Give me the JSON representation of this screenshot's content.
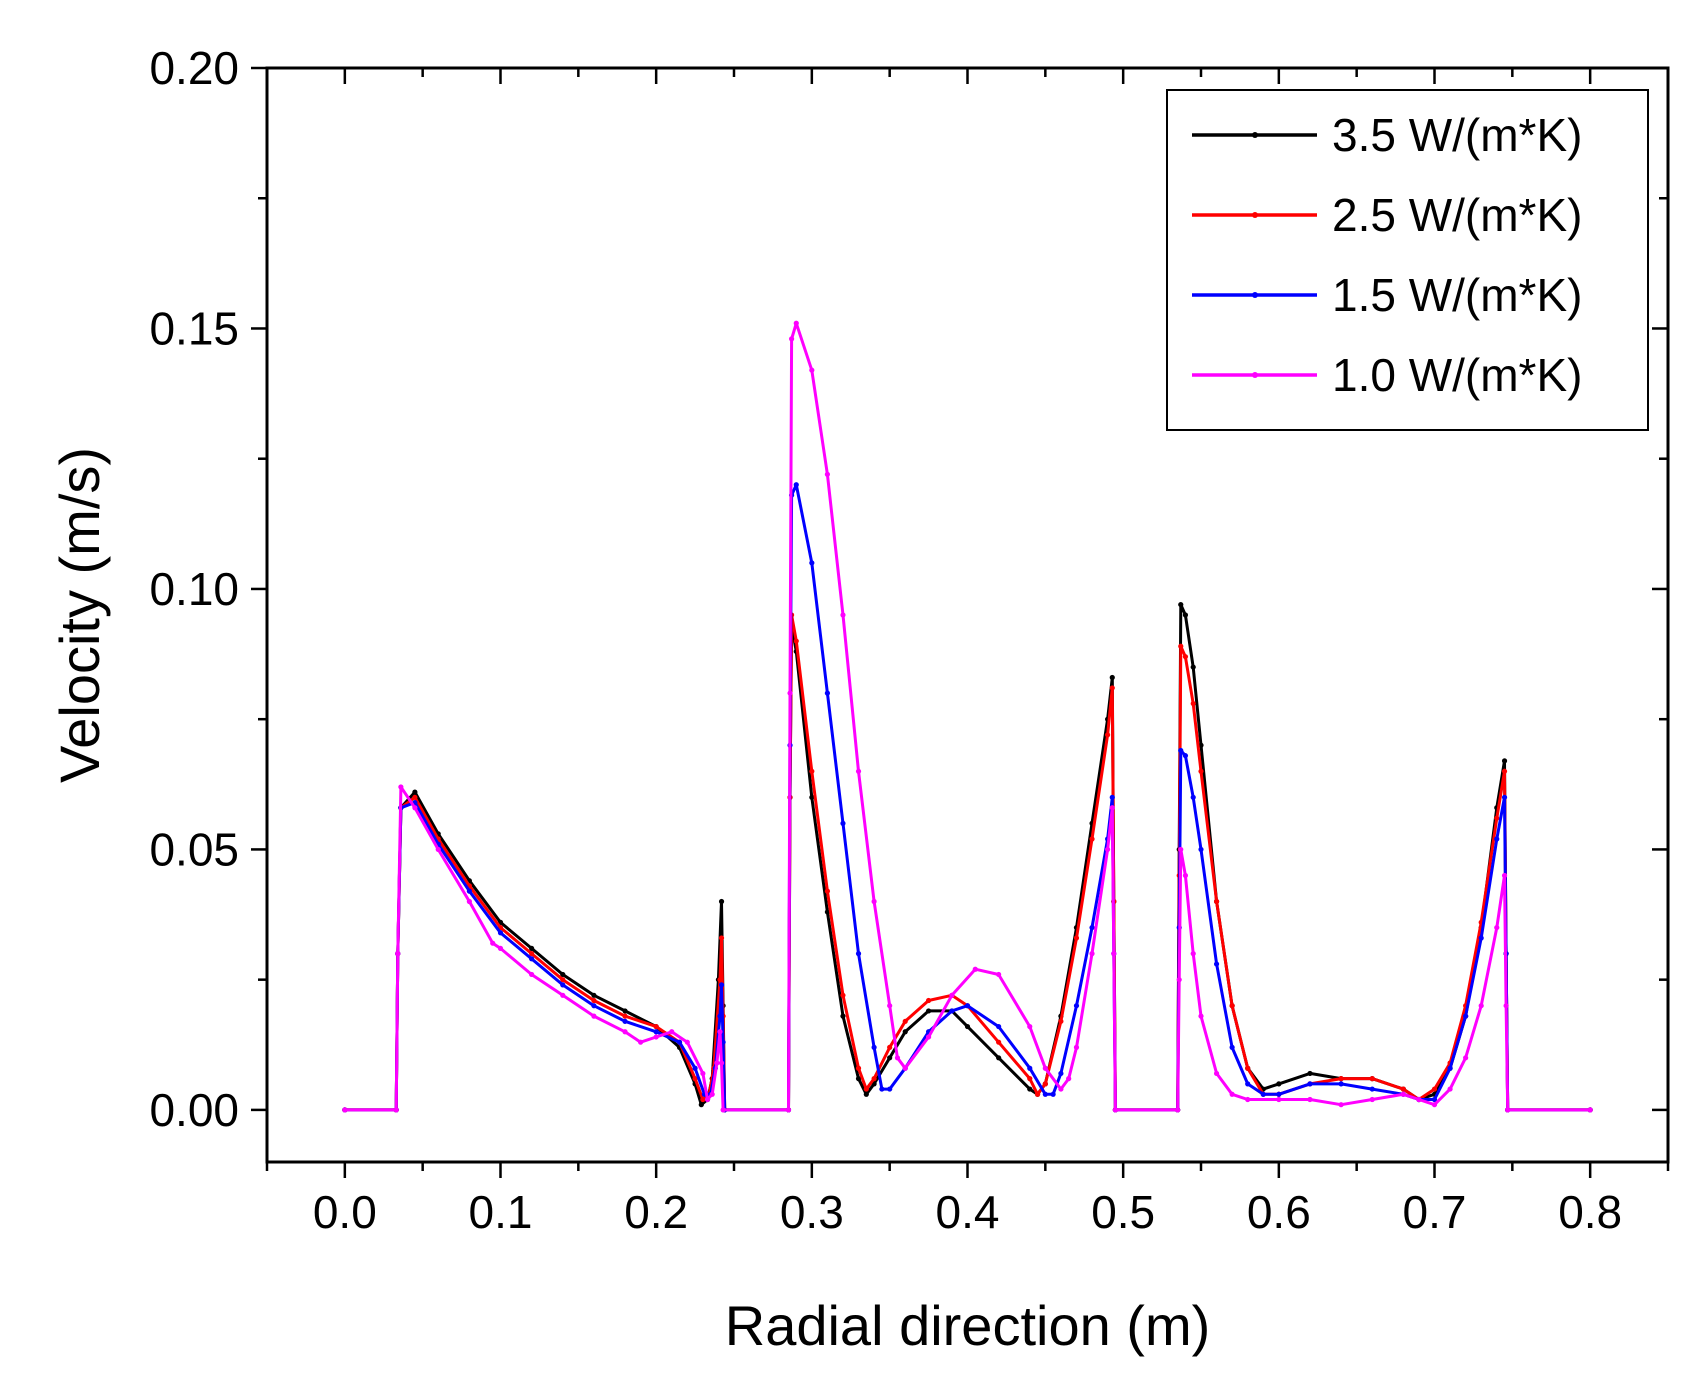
{
  "chart_data": {
    "type": "line",
    "title": "",
    "xlabel": "Radial direction (m)",
    "ylabel": "Velocity (m/s)",
    "xlim": [
      -0.05,
      0.85
    ],
    "ylim": [
      -0.01,
      0.2
    ],
    "x_ticks": [
      "0.0",
      "0.1",
      "0.2",
      "0.3",
      "0.4",
      "0.5",
      "0.6",
      "0.7",
      "0.8"
    ],
    "y_ticks": [
      "0.00",
      "0.05",
      "0.10",
      "0.15",
      "0.20"
    ],
    "grid": false,
    "legend_position": "top-right",
    "series": [
      {
        "name": "3.5 W/(m*K)",
        "color": "#000000",
        "x": [
          0.0,
          0.033,
          0.034,
          0.036,
          0.045,
          0.06,
          0.08,
          0.1,
          0.12,
          0.14,
          0.16,
          0.18,
          0.2,
          0.215,
          0.225,
          0.229,
          0.233,
          0.236,
          0.24,
          0.242,
          0.243,
          0.244,
          0.285,
          0.286,
          0.287,
          0.29,
          0.3,
          0.31,
          0.32,
          0.33,
          0.335,
          0.34,
          0.35,
          0.36,
          0.375,
          0.39,
          0.4,
          0.42,
          0.44,
          0.445,
          0.45,
          0.46,
          0.47,
          0.48,
          0.49,
          0.493,
          0.494,
          0.495,
          0.535,
          0.536,
          0.537,
          0.54,
          0.545,
          0.55,
          0.56,
          0.57,
          0.58,
          0.59,
          0.6,
          0.62,
          0.64,
          0.66,
          0.68,
          0.69,
          0.7,
          0.71,
          0.72,
          0.73,
          0.74,
          0.745,
          0.746,
          0.747,
          0.8
        ],
        "y": [
          0.0,
          0.0,
          0.03,
          0.058,
          0.061,
          0.053,
          0.044,
          0.036,
          0.031,
          0.026,
          0.022,
          0.019,
          0.016,
          0.012,
          0.005,
          0.001,
          0.002,
          0.006,
          0.025,
          0.04,
          0.02,
          0.0,
          0.0,
          0.06,
          0.093,
          0.088,
          0.06,
          0.038,
          0.018,
          0.006,
          0.003,
          0.005,
          0.01,
          0.015,
          0.019,
          0.019,
          0.016,
          0.01,
          0.004,
          0.003,
          0.005,
          0.018,
          0.035,
          0.055,
          0.075,
          0.083,
          0.04,
          0.0,
          0.0,
          0.05,
          0.097,
          0.095,
          0.085,
          0.07,
          0.04,
          0.02,
          0.008,
          0.004,
          0.005,
          0.007,
          0.006,
          0.006,
          0.004,
          0.002,
          0.003,
          0.008,
          0.018,
          0.035,
          0.058,
          0.067,
          0.03,
          0.0,
          0.0
        ]
      },
      {
        "name": "2.5 W/(m*K)",
        "color": "#ff0000",
        "x": [
          0.0,
          0.033,
          0.034,
          0.036,
          0.045,
          0.06,
          0.08,
          0.1,
          0.12,
          0.14,
          0.16,
          0.18,
          0.2,
          0.215,
          0.225,
          0.23,
          0.234,
          0.237,
          0.241,
          0.242,
          0.243,
          0.244,
          0.285,
          0.286,
          0.287,
          0.29,
          0.3,
          0.31,
          0.32,
          0.33,
          0.335,
          0.34,
          0.35,
          0.36,
          0.375,
          0.39,
          0.4,
          0.42,
          0.44,
          0.445,
          0.45,
          0.46,
          0.47,
          0.48,
          0.49,
          0.493,
          0.494,
          0.495,
          0.535,
          0.536,
          0.537,
          0.54,
          0.545,
          0.55,
          0.56,
          0.57,
          0.58,
          0.59,
          0.6,
          0.62,
          0.64,
          0.66,
          0.68,
          0.69,
          0.7,
          0.71,
          0.72,
          0.73,
          0.74,
          0.745,
          0.746,
          0.747,
          0.8
        ],
        "y": [
          0.0,
          0.0,
          0.03,
          0.058,
          0.06,
          0.052,
          0.043,
          0.035,
          0.03,
          0.025,
          0.021,
          0.018,
          0.016,
          0.013,
          0.006,
          0.002,
          0.003,
          0.008,
          0.025,
          0.033,
          0.018,
          0.0,
          0.0,
          0.06,
          0.095,
          0.09,
          0.065,
          0.042,
          0.022,
          0.008,
          0.004,
          0.006,
          0.012,
          0.017,
          0.021,
          0.022,
          0.02,
          0.013,
          0.006,
          0.003,
          0.005,
          0.017,
          0.033,
          0.052,
          0.072,
          0.081,
          0.04,
          0.0,
          0.0,
          0.045,
          0.089,
          0.087,
          0.078,
          0.065,
          0.04,
          0.02,
          0.008,
          0.003,
          0.003,
          0.005,
          0.006,
          0.006,
          0.004,
          0.002,
          0.004,
          0.009,
          0.02,
          0.036,
          0.056,
          0.065,
          0.03,
          0.0,
          0.0
        ]
      },
      {
        "name": "1.5 W/(m*K)",
        "color": "#0000ff",
        "x": [
          0.0,
          0.033,
          0.034,
          0.036,
          0.045,
          0.06,
          0.08,
          0.1,
          0.12,
          0.14,
          0.16,
          0.18,
          0.2,
          0.215,
          0.225,
          0.231,
          0.235,
          0.238,
          0.241,
          0.242,
          0.243,
          0.244,
          0.285,
          0.286,
          0.287,
          0.29,
          0.3,
          0.31,
          0.32,
          0.33,
          0.34,
          0.345,
          0.35,
          0.36,
          0.375,
          0.39,
          0.4,
          0.42,
          0.44,
          0.45,
          0.455,
          0.46,
          0.47,
          0.48,
          0.49,
          0.493,
          0.494,
          0.495,
          0.535,
          0.536,
          0.537,
          0.54,
          0.545,
          0.55,
          0.56,
          0.57,
          0.58,
          0.59,
          0.6,
          0.62,
          0.64,
          0.66,
          0.68,
          0.69,
          0.7,
          0.71,
          0.72,
          0.73,
          0.74,
          0.745,
          0.746,
          0.747,
          0.8
        ],
        "y": [
          0.0,
          0.0,
          0.03,
          0.058,
          0.059,
          0.051,
          0.042,
          0.034,
          0.029,
          0.024,
          0.02,
          0.017,
          0.015,
          0.013,
          0.008,
          0.003,
          0.003,
          0.008,
          0.018,
          0.024,
          0.013,
          0.0,
          0.0,
          0.07,
          0.118,
          0.12,
          0.105,
          0.08,
          0.055,
          0.03,
          0.012,
          0.004,
          0.004,
          0.008,
          0.015,
          0.019,
          0.02,
          0.016,
          0.008,
          0.003,
          0.003,
          0.007,
          0.02,
          0.035,
          0.052,
          0.06,
          0.03,
          0.0,
          0.0,
          0.035,
          0.069,
          0.068,
          0.06,
          0.05,
          0.028,
          0.012,
          0.005,
          0.003,
          0.003,
          0.005,
          0.005,
          0.004,
          0.003,
          0.002,
          0.002,
          0.008,
          0.018,
          0.033,
          0.052,
          0.06,
          0.03,
          0.0,
          0.0
        ]
      },
      {
        "name": "1.0 W/(m*K)",
        "color": "#ff00ff",
        "x": [
          0.0,
          0.033,
          0.034,
          0.036,
          0.045,
          0.06,
          0.08,
          0.095,
          0.1,
          0.12,
          0.14,
          0.16,
          0.18,
          0.19,
          0.2,
          0.21,
          0.22,
          0.23,
          0.233,
          0.236,
          0.239,
          0.241,
          0.242,
          0.243,
          0.285,
          0.286,
          0.287,
          0.29,
          0.3,
          0.31,
          0.32,
          0.33,
          0.34,
          0.35,
          0.355,
          0.36,
          0.375,
          0.39,
          0.405,
          0.42,
          0.44,
          0.45,
          0.46,
          0.465,
          0.47,
          0.48,
          0.49,
          0.493,
          0.494,
          0.495,
          0.535,
          0.536,
          0.537,
          0.54,
          0.545,
          0.55,
          0.56,
          0.57,
          0.58,
          0.6,
          0.62,
          0.64,
          0.66,
          0.68,
          0.69,
          0.7,
          0.71,
          0.72,
          0.73,
          0.74,
          0.745,
          0.746,
          0.747,
          0.8
        ],
        "y": [
          0.0,
          0.0,
          0.03,
          0.062,
          0.058,
          0.05,
          0.04,
          0.032,
          0.031,
          0.026,
          0.022,
          0.018,
          0.015,
          0.013,
          0.014,
          0.015,
          0.013,
          0.007,
          0.002,
          0.003,
          0.009,
          0.015,
          0.009,
          0.0,
          0.0,
          0.08,
          0.148,
          0.151,
          0.142,
          0.122,
          0.095,
          0.065,
          0.04,
          0.02,
          0.01,
          0.008,
          0.014,
          0.022,
          0.027,
          0.026,
          0.016,
          0.008,
          0.004,
          0.006,
          0.012,
          0.03,
          0.05,
          0.058,
          0.03,
          0.0,
          0.0,
          0.025,
          0.05,
          0.045,
          0.03,
          0.018,
          0.007,
          0.003,
          0.002,
          0.002,
          0.002,
          0.001,
          0.002,
          0.003,
          0.002,
          0.001,
          0.004,
          0.01,
          0.02,
          0.035,
          0.045,
          0.02,
          0.0,
          0.0
        ]
      }
    ]
  }
}
